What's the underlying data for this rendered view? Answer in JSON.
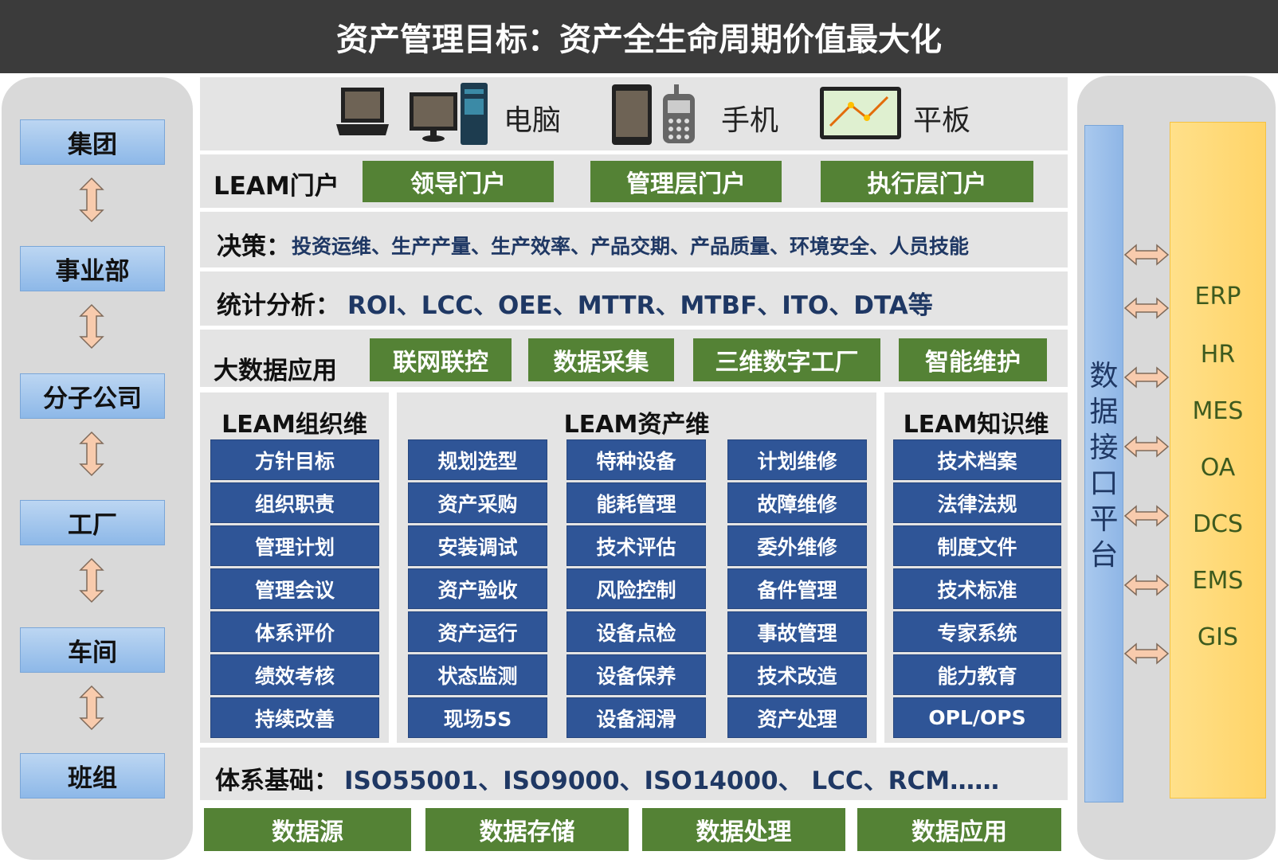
{
  "title": "资产管理目标：资产全生命周期价值最大化",
  "hierarchy": [
    "集团",
    "事业部",
    "分子公司",
    "工厂",
    "车间",
    "班组"
  ],
  "devices": {
    "pc": "电脑",
    "phone": "手机",
    "tablet": "平板"
  },
  "portal": {
    "label": "LEAM门户",
    "items": [
      "领导门户",
      "管理层门户",
      "执行层门户"
    ]
  },
  "decision": {
    "label": "决策：",
    "items": "投资运维、生产产量、生产效率、产品交期、产品质量、环境安全、人员技能"
  },
  "stats": {
    "label": "统计分析：",
    "items": "ROI、LCC、OEE、MTTR、MTBF、ITO、DTA等"
  },
  "bigdata": {
    "label": "大数据应用",
    "items": [
      "联网联控",
      "数据采集",
      "三维数字工厂",
      "智能维护"
    ]
  },
  "org": {
    "title": "LEAM组织维",
    "items": [
      "方针目标",
      "组织职责",
      "管理计划",
      "管理会议",
      "体系评价",
      "绩效考核",
      "持续改善"
    ]
  },
  "asset": {
    "title": "LEAM资产维",
    "col1": [
      "规划选型",
      "资产采购",
      "安装调试",
      "资产验收",
      "资产运行",
      "状态监测",
      "现场5S"
    ],
    "col2": [
      "特种设备",
      "能耗管理",
      "技术评估",
      "风险控制",
      "设备点检",
      "设备保养",
      "设备润滑"
    ],
    "col3": [
      "计划维修",
      "故障维修",
      "委外维修",
      "备件管理",
      "事故管理",
      "技术改造",
      "资产处理"
    ]
  },
  "knowledge": {
    "title": "LEAM知识维",
    "items": [
      "技术档案",
      "法律法规",
      "制度文件",
      "技术标准",
      "专家系统",
      "能力教育",
      "OPL/OPS"
    ]
  },
  "foundation": {
    "label": "体系基础：",
    "items": "ISO55001、ISO9000、ISO14000、 LCC、RCM……"
  },
  "data_layers": [
    "数据源",
    "数据存储",
    "数据处理",
    "数据应用"
  ],
  "interface": {
    "label": "数据接口平台"
  },
  "systems": [
    "ERP",
    "HR",
    "MES",
    "OA",
    "DCS",
    "EMS",
    "GIS"
  ],
  "colors": {
    "title_bg": "#3b3b3b",
    "green": "#548235",
    "cell_blue": "#2f5597",
    "panel_gray": "#d9d9d9",
    "arrow": "#f8cbad",
    "orange": "#ffd468",
    "light_blue": "#9dc3e6"
  }
}
